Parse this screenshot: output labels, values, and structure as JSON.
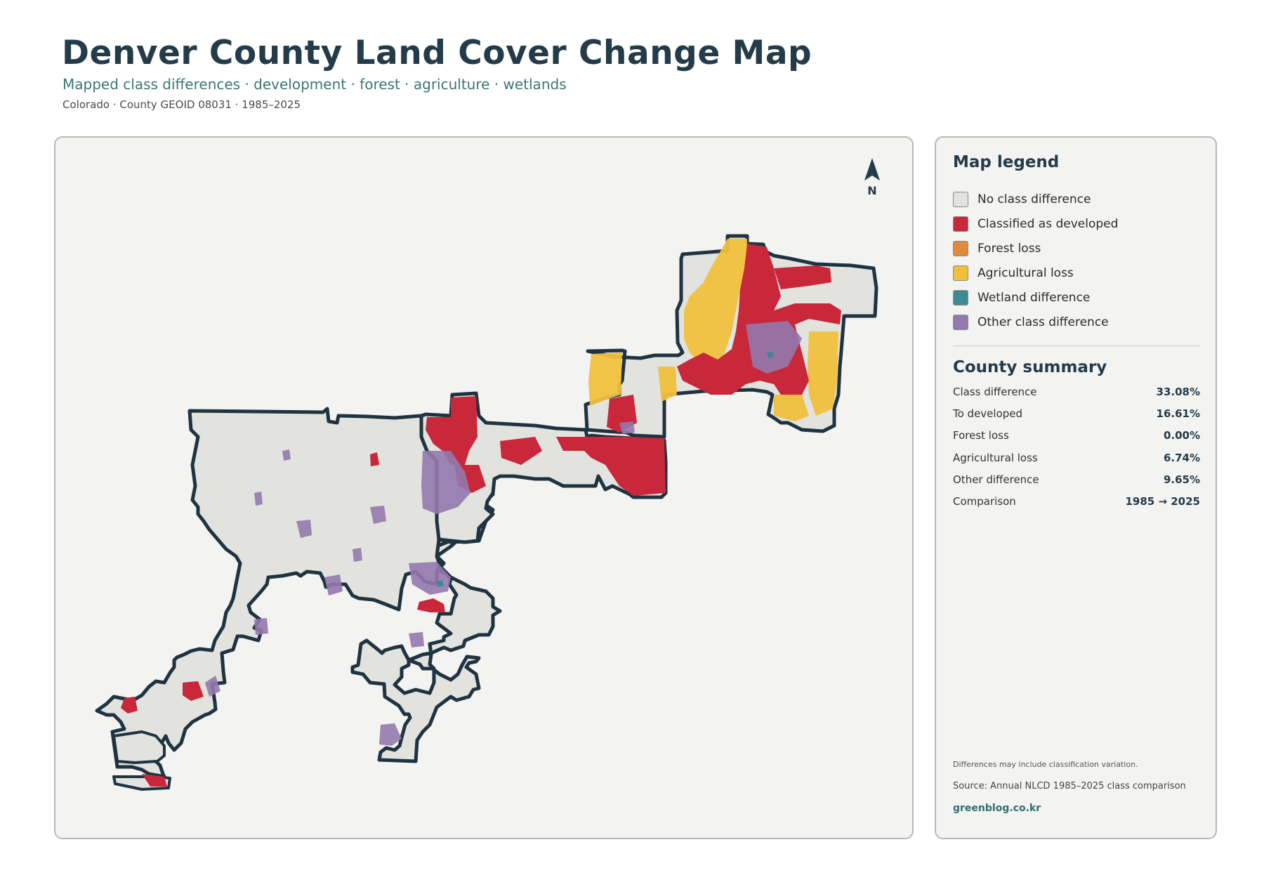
{
  "header": {
    "title": "Denver County Land Cover Change Map",
    "subtitle": "Mapped class differences · development · forest · agriculture · wetlands",
    "meta": "Colorado · County GEOID 08031 · 1985–2025"
  },
  "map": {
    "north_label": "N",
    "north_icon": "north-arrow-icon"
  },
  "legend": {
    "title": "Map legend",
    "items": [
      {
        "label": "No class difference",
        "color": "#e2e2df"
      },
      {
        "label": "Classified as developed",
        "color": "#c9273a"
      },
      {
        "label": "Forest loss",
        "color": "#e08b3c"
      },
      {
        "label": "Agricultural loss",
        "color": "#f0c03c"
      },
      {
        "label": "Wetland difference",
        "color": "#3e8a92"
      },
      {
        "label": "Other class difference",
        "color": "#9479ae"
      }
    ]
  },
  "summary": {
    "title": "County summary",
    "rows": [
      {
        "label": "Class difference",
        "value": "33.08%"
      },
      {
        "label": "To developed",
        "value": "16.61%"
      },
      {
        "label": "Forest loss",
        "value": "0.00%"
      },
      {
        "label": "Agricultural loss",
        "value": "6.74%"
      },
      {
        "label": "Other difference",
        "value": "9.65%"
      },
      {
        "label": "Comparison",
        "value": "1985 → 2025"
      }
    ]
  },
  "footer": {
    "note": "Differences may include classification variation.",
    "source": "Source: Annual NLCD 1985–2025 class comparison",
    "site": "greenblog.co.kr"
  },
  "colors": {
    "title": "#243b4a",
    "subtitle": "#3c7474",
    "outline": "#1f3340",
    "panel_bg": "#f3f3f1"
  }
}
